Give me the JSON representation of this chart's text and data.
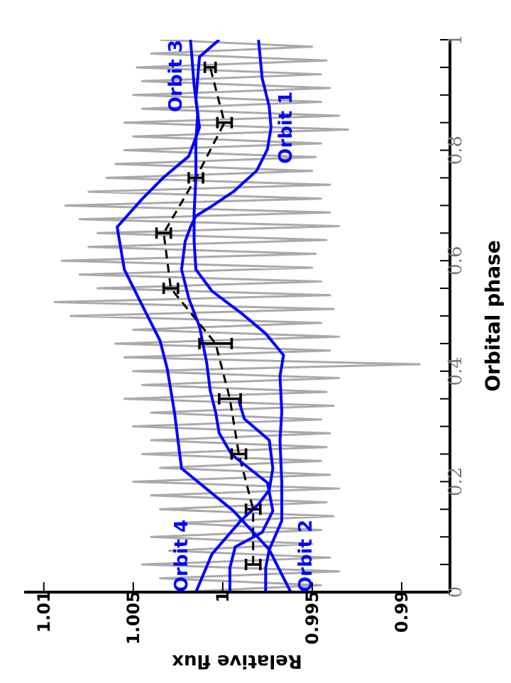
{
  "chart_data": {
    "type": "line",
    "xlabel": "Relative flux",
    "ylabel": "Orbital phase",
    "xlim": [
      1.0111,
      0.9873
    ],
    "xticks": [
      1.01,
      1.005,
      1,
      0.995,
      0.99
    ],
    "ylim": [
      0,
      1
    ],
    "yticks": [
      0,
      {
        "value": 0.05,
        "label": null
      },
      {
        "value": 0.1,
        "label": null
      },
      {
        "value": 0.15,
        "label": null
      },
      0.2,
      {
        "value": 0.25,
        "label": null
      },
      {
        "value": 0.3,
        "label": null
      },
      {
        "value": 0.35,
        "label": null
      },
      0.4,
      {
        "value": 0.45,
        "label": null
      },
      {
        "value": 0.5,
        "label": null
      },
      {
        "value": 0.55,
        "label": null
      },
      0.6,
      {
        "value": 0.65,
        "label": null
      },
      {
        "value": 0.7,
        "label": null
      },
      {
        "value": 0.75,
        "label": null
      },
      0.8,
      {
        "value": 0.85,
        "label": null
      },
      {
        "value": 0.9,
        "label": null
      },
      {
        "value": 0.95,
        "label": null
      },
      1
    ],
    "marker": "none",
    "series": [
      {
        "color": "#aaaaaa",
        "values": [
          0,
          0.0125,
          0.025,
          0.0375,
          0.05,
          0.0625,
          0.075,
          0.0875,
          0.1,
          0.1125,
          0.125,
          0.1375,
          0.15,
          0.1625,
          0.175,
          0.1875,
          0.2,
          0.2125,
          0.225,
          0.2375,
          0.25,
          0.2625,
          0.275,
          0.2875,
          0.3,
          0.3125,
          0.325,
          0.3375,
          0.35,
          0.3625,
          0.375,
          0.3875,
          0.4,
          0.4125,
          0.425,
          0.4375,
          0.45,
          0.4625,
          0.475,
          0.4875,
          0.5,
          0.5125,
          0.525,
          0.5375,
          0.55,
          0.5625,
          0.575,
          0.5875,
          0.6,
          0.6125,
          0.625,
          0.6375,
          0.65,
          0.6625,
          0.675,
          0.6875,
          0.7,
          0.7125,
          0.725,
          0.7375,
          0.75,
          0.7625,
          0.775,
          0.7875,
          0.8,
          0.8125,
          0.825,
          0.8375,
          0.85,
          0.8625,
          0.875,
          0.8875,
          0.9,
          0.9125,
          0.925,
          0.9375,
          0.95,
          0.9625,
          0.975,
          0.9875,
          1
        ],
        "x": [
          1.0025,
          0.9945,
          1.0035,
          0.9935,
          1.0045,
          0.994,
          1.003,
          0.995,
          1.004,
          0.9945,
          1.0025,
          0.9938,
          1.0035,
          0.9942,
          1.004,
          0.9935,
          1.005,
          0.994,
          1.0035,
          0.9945,
          1.0045,
          0.9942,
          1.004,
          0.994,
          1.005,
          0.9945,
          1.004,
          0.9938,
          1.0055,
          0.9942,
          1.0045,
          0.9935,
          1.005,
          0.989,
          1.0055,
          0.994,
          1.006,
          0.9935,
          1.005,
          0.9945,
          1.0085,
          0.9938,
          1.0094,
          0.994,
          1.007,
          0.9945,
          1.008,
          0.995,
          1.009,
          0.9948,
          1.0075,
          0.9942,
          1.007,
          0.9935,
          1.008,
          0.994,
          1.0088,
          0.9945,
          1.0075,
          0.994,
          1.0065,
          0.995,
          1.006,
          0.9948,
          1.0055,
          0.9945,
          1.005,
          0.993,
          1.0055,
          0.9935,
          1.0045,
          0.9945,
          1.005,
          0.994,
          1.0045,
          0.9945,
          1.0048,
          0.9942,
          1.004,
          0.995,
          1.0035
        ]
      },
      {
        "color": "#000000",
        "line_style": "dashed",
        "values": [
          0.05,
          0.15,
          0.25,
          0.35,
          0.45,
          0.55,
          0.65,
          0.75,
          0.85,
          0.95
        ],
        "x": [
          0.9983,
          0.9983,
          0.9991,
          0.9996,
          1.0004,
          1.0029,
          1.0033,
          1.0015,
          0.9999,
          1.0007
        ],
        "xerrors": [
          0.0004,
          0.0004,
          0.0004,
          0.0006,
          0.0009,
          0.0004,
          0.0004,
          0.0004,
          0.0004,
          0.0003
        ]
      },
      {
        "name": "Orbit 1",
        "color": "#0000ff",
        "values": [
          0,
          0.044,
          0.082,
          0.108,
          0.147,
          0.198,
          0.249,
          0.288,
          0.326,
          0.365,
          0.416,
          0.481,
          0.532,
          0.584,
          0.635,
          0.661,
          0.681,
          0.699,
          0.725,
          0.763,
          0.802,
          0.841,
          0.879,
          0.931,
          1
        ],
        "x": [
          0.9996,
          0.9996,
          0.9993,
          0.9978,
          0.9972,
          0.9975,
          0.9995,
          1.0002,
          1.0004,
          1.0007,
          1.0009,
          1.0013,
          1.0019,
          1.0023,
          1.0021,
          1.0018,
          1.0015,
          1.0006,
          0.9994,
          0.9981,
          0.9975,
          0.9973,
          0.9974,
          0.9978,
          0.998
        ]
      },
      {
        "name": "Orbit 2",
        "color": "#0000ff",
        "values": [
          0,
          0.077,
          0.147,
          0.224,
          0.249,
          0.326,
          0.404,
          0.455,
          0.519,
          0.584,
          0.661,
          0.712,
          0.751,
          0.789,
          0.841,
          0.892,
          0.969,
          1
        ],
        "x": [
          0.9962,
          0.9974,
          0.9994,
          1.0023,
          1.0024,
          1.0027,
          1.0031,
          1.0035,
          1.0045,
          1.0055,
          1.0059,
          1.0045,
          1.0033,
          1.0019,
          1.0013,
          1.0015,
          1.0013,
          1.0002
        ]
      },
      {
        "name": "Orbit 3",
        "color": "#0000ff",
        "values": [
          0,
          0.044,
          0.077,
          0.129,
          0.198,
          0.275,
          0.326,
          0.391,
          0.429,
          0.468,
          0.506,
          0.545,
          0.584,
          0.635,
          0.686,
          0.751,
          0.815,
          0.866,
          0.918,
          1
        ],
        "x": [
          0.9976,
          0.9976,
          0.9974,
          0.9967,
          0.9967,
          0.9968,
          0.9967,
          0.9968,
          0.9966,
          0.9976,
          0.999,
          1.0006,
          1.0015,
          1.0016,
          1.0016,
          1.0015,
          1.0015,
          1.0014,
          1.0016,
          1.0018
        ]
      },
      {
        "name": "Orbit 4",
        "color": "#0000ff",
        "values": [
          0,
          0.069,
          0.129,
          0.159,
          0.185,
          0.224,
          0.275,
          0.314,
          0.347
        ],
        "x": [
          1.0015,
          1.0006,
          0.999,
          0.998,
          0.9974,
          0.9972,
          0.9974,
          0.9988,
          0.9991
        ]
      }
    ]
  }
}
